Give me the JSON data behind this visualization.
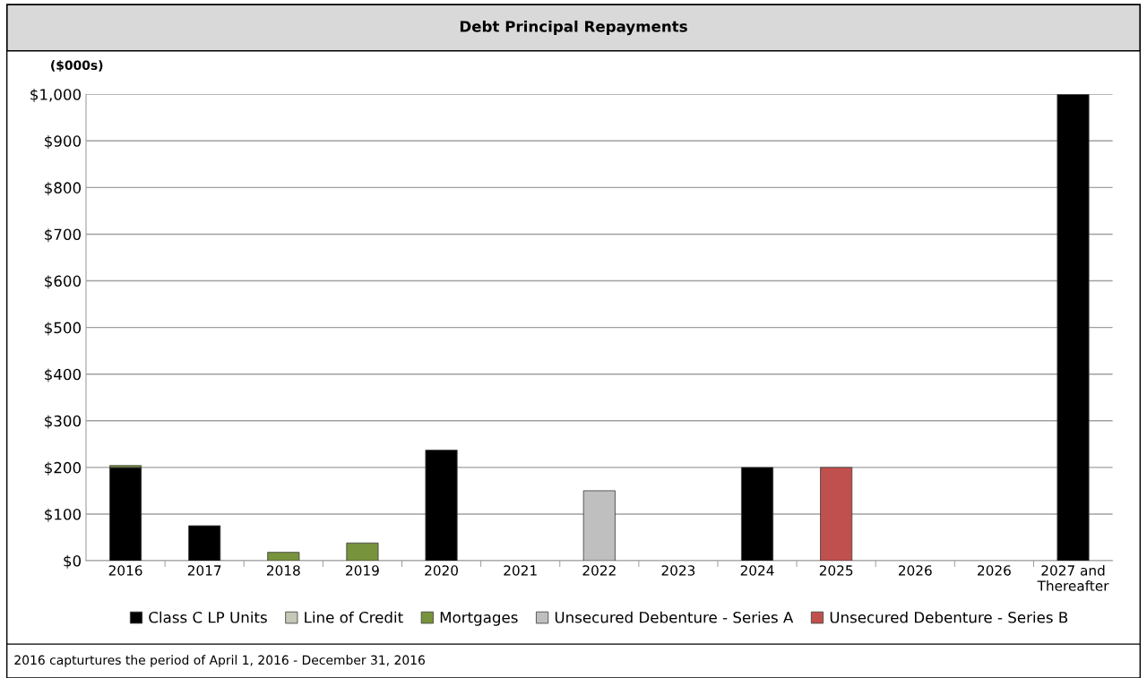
{
  "chart_data": {
    "type": "bar",
    "stacked": true,
    "title": "Debt Principal Repayments",
    "ylabel": "($000s)",
    "categories": [
      "2016",
      "2017",
      "2018",
      "2019",
      "2020",
      "2021",
      "2022",
      "2023",
      "2024",
      "2025",
      "2026",
      "2026",
      "2027 and\nThereafter"
    ],
    "series": [
      {
        "name": "Class C LP Units",
        "color": "#000000",
        "values": [
          200,
          75,
          null,
          null,
          237,
          null,
          null,
          null,
          200,
          null,
          null,
          null,
          1000
        ]
      },
      {
        "name": "Line of Credit",
        "color": "#c4c8b4",
        "values": [
          null,
          null,
          null,
          null,
          null,
          null,
          null,
          null,
          null,
          null,
          null,
          null,
          null
        ]
      },
      {
        "name": "Mortgages",
        "color": "#77933c",
        "values": [
          4,
          null,
          18,
          38,
          null,
          null,
          null,
          null,
          null,
          null,
          null,
          null,
          null
        ]
      },
      {
        "name": "Unsecured Debenture - Series A",
        "color": "#bfbfbf",
        "values": [
          null,
          null,
          null,
          null,
          null,
          null,
          150,
          null,
          null,
          null,
          null,
          null,
          null
        ]
      },
      {
        "name": "Unsecured Debenture - Series B",
        "color": "#c0504d",
        "values": [
          null,
          null,
          null,
          null,
          null,
          null,
          null,
          null,
          null,
          200,
          null,
          null,
          null
        ]
      }
    ],
    "ylim": [
      0,
      1000
    ],
    "yticks": [
      {
        "value": 0,
        "label": "$0"
      },
      {
        "value": 100,
        "label": "$100"
      },
      {
        "value": 200,
        "label": "$200"
      },
      {
        "value": 300,
        "label": "$300"
      },
      {
        "value": 400,
        "label": "$400"
      },
      {
        "value": 500,
        "label": "$500"
      },
      {
        "value": 600,
        "label": "$600"
      },
      {
        "value": 700,
        "label": "$700"
      },
      {
        "value": 800,
        "label": "$800"
      },
      {
        "value": 900,
        "label": "$900"
      },
      {
        "value": 1000,
        "label": "$1,000"
      }
    ],
    "grid": "y",
    "legend": "bottom",
    "annotations": [
      "2016 capturtures the period of April 1, 2016 - December 31, 2016"
    ]
  }
}
